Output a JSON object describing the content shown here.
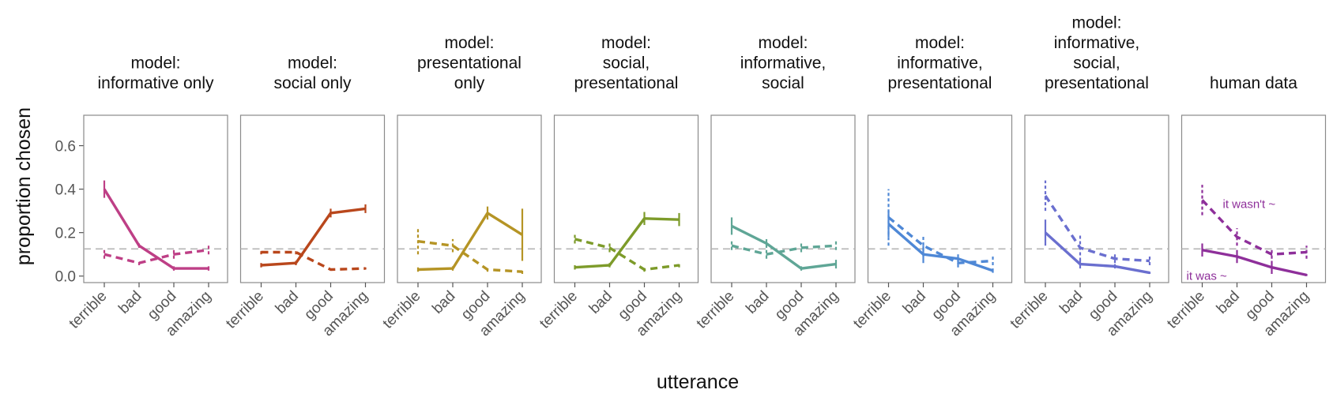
{
  "chart_data": {
    "type": "line",
    "ylabel": "proportion chosen",
    "xlabel": "utterance",
    "categories": [
      "terrible",
      "bad",
      "good",
      "amazing"
    ],
    "yticks": [
      0.0,
      0.2,
      0.4,
      0.6
    ],
    "ytick_labels": [
      "0.0",
      "0.2",
      "0.4",
      "0.6"
    ],
    "ylim": [
      -0.03,
      0.74
    ],
    "chance_line": 0.125,
    "panels": [
      {
        "title": [
          "model:",
          "informative only"
        ],
        "color": "#be3f86",
        "series": [
          {
            "style": "solid",
            "values": [
              0.4,
              0.14,
              0.035,
              0.035
            ],
            "err": [
              0.04,
              0.01,
              0.01,
              0.01
            ]
          },
          {
            "style": "dashed",
            "values": [
              0.1,
              0.06,
              0.1,
              0.12
            ],
            "err": [
              0.02,
              0.01,
              0.02,
              0.02
            ]
          }
        ]
      },
      {
        "title": [
          "model:",
          "social only"
        ],
        "color": "#b9471c",
        "series": [
          {
            "style": "solid",
            "values": [
              0.05,
              0.06,
              0.29,
              0.31
            ],
            "err": [
              0.01,
              0.01,
              0.02,
              0.02
            ]
          },
          {
            "style": "dashed",
            "values": [
              0.11,
              0.11,
              0.03,
              0.035
            ],
            "err": [
              0.01,
              0.01,
              0.005,
              0.005
            ]
          }
        ]
      },
      {
        "title": [
          "model:",
          "presentational",
          "only"
        ],
        "color": "#b59425",
        "series": [
          {
            "style": "solid",
            "values": [
              0.03,
              0.035,
              0.29,
              0.19
            ],
            "err": [
              0.01,
              0.01,
              0.03,
              0.12
            ]
          },
          {
            "style": "dashed",
            "values": [
              0.16,
              0.14,
              0.03,
              0.02
            ],
            "err": [
              0.06,
              0.03,
              0.01,
              0.01
            ]
          }
        ]
      },
      {
        "title": [
          "model:",
          "social,",
          "presentational"
        ],
        "color": "#7d9b2a",
        "series": [
          {
            "style": "solid",
            "values": [
              0.04,
              0.05,
              0.265,
              0.26
            ],
            "err": [
              0.01,
              0.01,
              0.03,
              0.03
            ]
          },
          {
            "style": "dashed",
            "values": [
              0.17,
              0.13,
              0.03,
              0.05
            ],
            "err": [
              0.02,
              0.02,
              0.01,
              0.01
            ]
          }
        ]
      },
      {
        "title": [
          "model:",
          "informative,",
          "social"
        ],
        "color": "#5fa696",
        "series": [
          {
            "style": "solid",
            "values": [
              0.23,
              0.15,
              0.035,
              0.055
            ],
            "err": [
              0.04,
              0.02,
              0.01,
              0.02
            ]
          },
          {
            "style": "dashed",
            "values": [
              0.14,
              0.1,
              0.13,
              0.14
            ],
            "err": [
              0.02,
              0.02,
              0.02,
              0.02
            ]
          }
        ]
      },
      {
        "title": [
          "model:",
          "informative,",
          "presentational"
        ],
        "color": "#4f88d6",
        "series": [
          {
            "style": "solid",
            "values": [
              0.24,
              0.1,
              0.08,
              0.025
            ],
            "err": [
              0.06,
              0.04,
              0.02,
              0.01
            ]
          },
          {
            "style": "dashed",
            "values": [
              0.27,
              0.14,
              0.06,
              0.07
            ],
            "err": [
              0.13,
              0.05,
              0.02,
              0.02
            ]
          }
        ]
      },
      {
        "title": [
          "model:",
          "informative,",
          "social,",
          "presentational"
        ],
        "color": "#6a6fcf",
        "series": [
          {
            "style": "solid",
            "values": [
              0.2,
              0.055,
              0.045,
              0.015
            ],
            "err": [
              0.06,
              0.02,
              0.01,
              0.005
            ]
          },
          {
            "style": "dashed",
            "values": [
              0.37,
              0.13,
              0.08,
              0.07
            ],
            "err": [
              0.07,
              0.06,
              0.02,
              0.02
            ]
          }
        ]
      },
      {
        "title": [
          "human data"
        ],
        "color": "#8e2f9a",
        "series": [
          {
            "style": "solid",
            "values": [
              0.12,
              0.09,
              0.04,
              0.005
            ],
            "err": [
              0.03,
              0.03,
              0.03,
              0.005
            ],
            "label": "it was ~"
          },
          {
            "style": "dashed",
            "values": [
              0.35,
              0.18,
              0.1,
              0.11
            ],
            "err": [
              0.07,
              0.04,
              0.02,
              0.03
            ],
            "label": "it wasn't ~"
          }
        ]
      }
    ]
  }
}
